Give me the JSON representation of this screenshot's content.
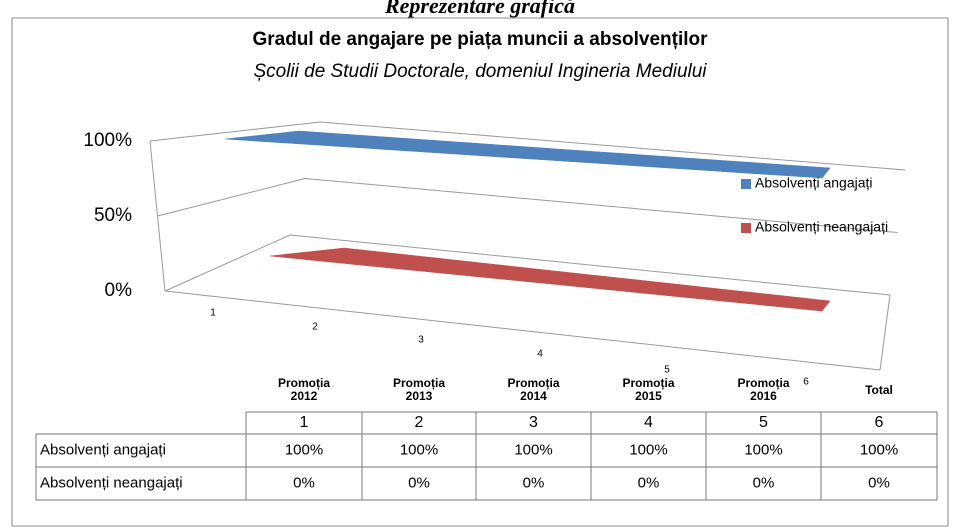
{
  "page_heading": "Reprezentare grafică",
  "chart_data": {
    "type": "line",
    "title": "Gradul de angajare pe piața muncii a absolvenților",
    "subtitle": "Școlii de Studii Doctorale, domeniul Ingineria Mediului",
    "categories": [
      "1",
      "2",
      "3",
      "4",
      "5",
      "6"
    ],
    "series": [
      {
        "name": "Absolvenți angajați",
        "color": "#4f81bd",
        "values": [
          100,
          100,
          100,
          100,
          100,
          100
        ],
        "value_labels": [
          "100%",
          "100%",
          "100%",
          "100%",
          "100%",
          "100%"
        ]
      },
      {
        "name": "Absolvenți neangajați",
        "color": "#c0504d",
        "values": [
          0,
          0,
          0,
          0,
          0,
          0
        ],
        "value_labels": [
          "0%",
          "0%",
          "0%",
          "0%",
          "0%",
          "0%"
        ]
      }
    ],
    "ylim": [
      0,
      100
    ],
    "yticks": [
      {
        "value": 0,
        "label": "0%"
      },
      {
        "value": 50,
        "label": "50%"
      },
      {
        "value": 100,
        "label": "100%"
      }
    ],
    "grid": true,
    "legend": "right",
    "table_column_headers": [
      "Promoția 2012",
      "Promoția 2013",
      "Promoția 2014",
      "Promoția 2015",
      "Promoția 2016",
      "Total"
    ]
  }
}
